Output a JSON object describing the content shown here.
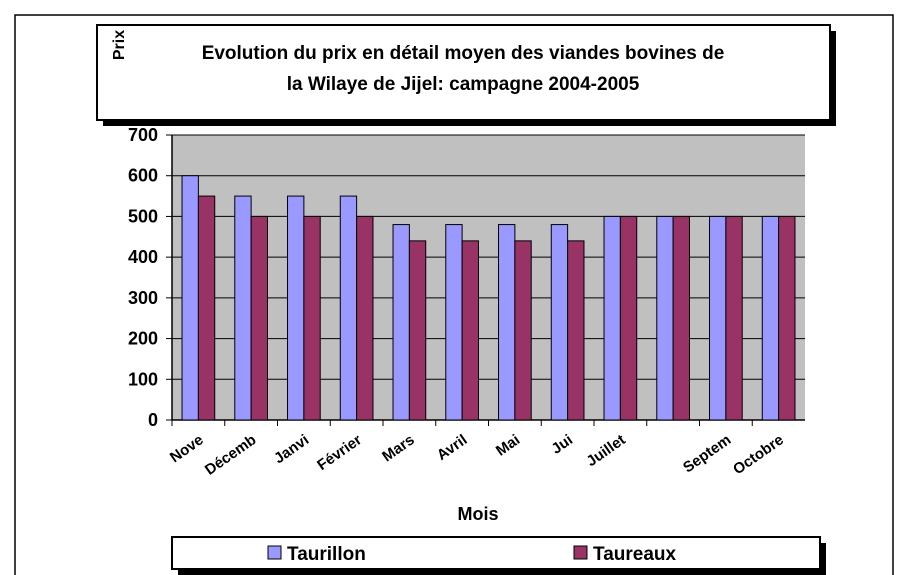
{
  "chart_data": {
    "type": "bar",
    "title": [
      "Evolution du prix en détail moyen des viandes bovines de",
      "la Wilaye de Jijel: campagne 2004-2005"
    ],
    "x_label": "Mois",
    "y_label": "Prix",
    "categories": [
      "Nove",
      "Décemb",
      "Janvi",
      "Février",
      "Mars",
      "Avril",
      "Mai",
      "Jui",
      "Juillet",
      null,
      "Septem",
      "Octobre"
    ],
    "series": [
      {
        "name": "Taurillon",
        "color": "#9999ff",
        "values": [
          600,
          550,
          550,
          550,
          480,
          480,
          480,
          480,
          500,
          500,
          500,
          500
        ]
      },
      {
        "name": "Taureaux",
        "color": "#993366",
        "values": [
          550,
          500,
          500,
          500,
          440,
          440,
          440,
          440,
          500,
          500,
          500,
          500
        ]
      }
    ],
    "ylim": [
      0,
      700
    ],
    "yticks": [
      0,
      100,
      200,
      300,
      400,
      500,
      600,
      700
    ],
    "grid": true,
    "plot_background": "#c0c0c0"
  }
}
